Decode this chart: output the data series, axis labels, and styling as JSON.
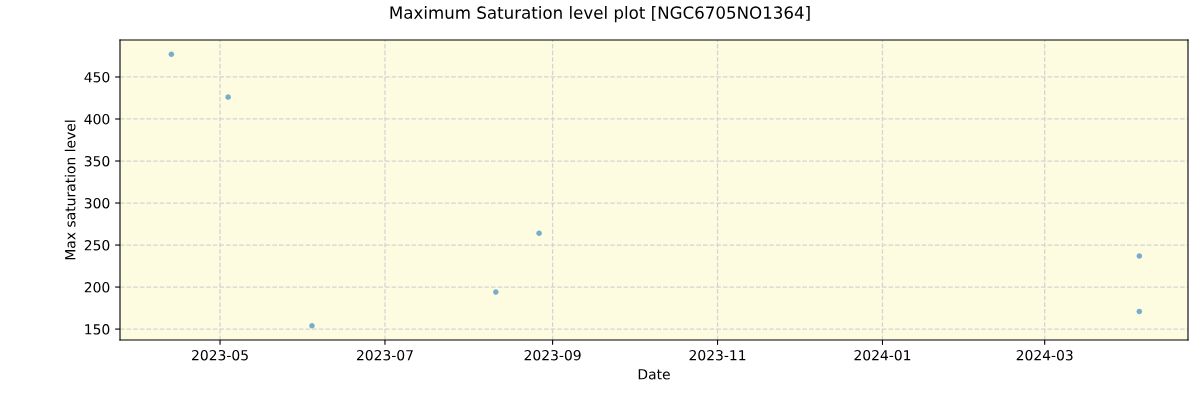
{
  "chart_data": {
    "type": "scatter",
    "title": "Maximum Saturation level plot [NGC6705NO1364]",
    "xlabel": "Date",
    "ylabel": "Max saturation level",
    "x": [
      "2023-04-13",
      "2023-05-04",
      "2023-06-04",
      "2023-08-11",
      "2023-08-27",
      "2024-04-05",
      "2024-04-05"
    ],
    "series": [
      {
        "color": "#77aecd",
        "values": [
          477,
          426,
          154,
          194,
          264,
          237,
          171
        ]
      }
    ],
    "xlim": [
      "2023-03-25",
      "2024-04-23"
    ],
    "xticks": [
      "2023-05",
      "2023-07",
      "2023-09",
      "2023-11",
      "2024-01",
      "2024-03"
    ],
    "ylim": [
      137,
      494
    ],
    "yticks": [
      150,
      200,
      250,
      300,
      350,
      400,
      450
    ],
    "grid": true,
    "marker": "circle"
  }
}
